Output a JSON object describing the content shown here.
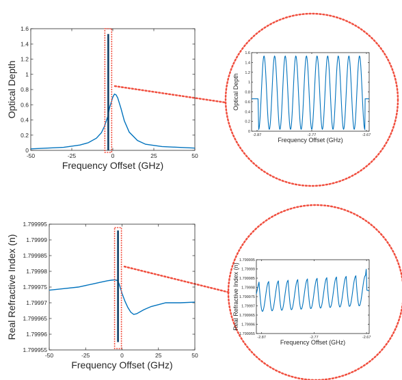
{
  "chart_data": [
    {
      "type": "line",
      "xlabel": "Frequency Offset (GHz)",
      "ylabel": "Optical Depth",
      "xlim": [
        -50,
        50
      ],
      "ylim": [
        0,
        1.6
      ],
      "xticks": [
        -50,
        -25,
        0,
        25,
        50
      ],
      "xtick_labels": [
        "-50",
        "-25",
        "0",
        "25",
        "50"
      ],
      "yticks": [
        0,
        0.2,
        0.4,
        0.6,
        0.8,
        1,
        1.2,
        1.4,
        1.6
      ],
      "ytick_labels": [
        "0",
        "0.2",
        "0.4",
        "0.6",
        "0.8",
        "1",
        "1.2",
        "1.4",
        "1.6"
      ],
      "series": [
        {
          "x": [
            -50,
            -40,
            -30,
            -20,
            -15,
            -10,
            -7,
            -5,
            -3,
            -2,
            0,
            1,
            2,
            3,
            5,
            7,
            10,
            15,
            20,
            30,
            40,
            50
          ],
          "y": [
            0.02,
            0.03,
            0.04,
            0.07,
            0.1,
            0.16,
            0.23,
            0.32,
            0.45,
            0.56,
            0.7,
            0.74,
            0.73,
            0.69,
            0.55,
            0.39,
            0.24,
            0.13,
            0.08,
            0.05,
            0.04,
            0.03
          ]
        }
      ],
      "band": {
        "x": -2.77,
        "ymin": 0,
        "ymax": 1.53
      },
      "highlight_x": [
        -2.87,
        -2.67
      ]
    },
    {
      "type": "line",
      "xlabel": "Frequency Offset (GHz)",
      "ylabel": "Optical Depth",
      "xlim": [
        -2.88,
        -2.665
      ],
      "ylim": [
        0,
        1.6
      ],
      "xticks": [
        -2.87,
        -2.77,
        -2.67
      ],
      "xtick_labels": [
        "-2.87",
        "-2.77",
        "-2.67"
      ],
      "yticks": [
        0,
        0.2,
        0.4,
        0.6,
        0.8,
        1,
        1.2,
        1.4,
        1.6
      ],
      "ytick_labels": [
        "0",
        "0.2",
        "0.4",
        "0.6",
        "0.8",
        "1",
        "1.2",
        "1.4",
        "1.6"
      ],
      "series": [
        {
          "baseline": 0.66,
          "peak": 1.53,
          "trough": 0.04,
          "peaks": 10,
          "x_start": -2.867,
          "x_end": -2.673
        }
      ]
    },
    {
      "type": "line",
      "xlabel": "Frequency Offset (GHz)",
      "ylabel": "Real Refractive Index (n)",
      "xlim": [
        -50,
        50
      ],
      "ylim": [
        1.799955,
        1.799995
      ],
      "xticks": [
        -50,
        -25,
        0,
        25,
        50
      ],
      "xtick_labels": [
        "-50",
        "-25",
        "0",
        "25",
        "50"
      ],
      "yticks": [
        1.799955,
        1.79996,
        1.799965,
        1.79997,
        1.799975,
        1.79998,
        1.799985,
        1.79999,
        1.799995
      ],
      "ytick_labels": [
        "1.799955",
        "1.79996",
        "1.799965",
        "1.79997",
        "1.799975",
        "1.79998",
        "1.799985",
        "1.79999",
        "1.799995"
      ],
      "series": [
        {
          "x": [
            -50,
            -40,
            -30,
            -20,
            -15,
            -10,
            -7,
            -5,
            -4,
            -3,
            -2,
            -1,
            0,
            2,
            4,
            6,
            8,
            10,
            15,
            20,
            30,
            40,
            50
          ],
          "y": [
            1.799974,
            1.7999745,
            1.799975,
            1.799976,
            1.7999765,
            1.799977,
            1.7999772,
            1.7999773,
            1.7999772,
            1.799977,
            1.799976,
            1.7999745,
            1.799973,
            1.7999705,
            1.7999685,
            1.799967,
            1.7999663,
            1.7999665,
            1.7999678,
            1.7999688,
            1.79997,
            1.79997,
            1.7999702
          ]
        }
      ],
      "band": {
        "x": -2.77,
        "ymin": 1.7999575,
        "ymax": 1.799993
      },
      "highlight_x": [
        -2.87,
        -2.67
      ]
    },
    {
      "type": "line",
      "xlabel": "Frequency Offset (GHz)",
      "ylabel": "Real Refractive Index (n)",
      "xlim": [
        -2.88,
        -2.665
      ],
      "ylim": [
        1.799955,
        1.799995
      ],
      "xticks": [
        -2.87,
        -2.77,
        -2.67
      ],
      "xtick_labels": [
        "-2.87",
        "-2.77",
        "-2.67"
      ],
      "yticks": [
        1.799955,
        1.79996,
        1.799965,
        1.79997,
        1.799975,
        1.79998,
        1.799985,
        1.79999,
        1.799995
      ],
      "ytick_labels": [
        "1.799955",
        "1.79996",
        "1.799965",
        "1.79997",
        "1.799975",
        "1.79998",
        "1.799985",
        "1.79999",
        "1.799995"
      ],
      "series": [
        {
          "start": 1.7999765,
          "lows_from": 1.799967,
          "lows_to": 1.79997,
          "highs_from": 1.799983,
          "highs_to": 1.7999865,
          "cycles": 11,
          "end_peak": 1.79999,
          "end_value": 1.7999785
        }
      ]
    }
  ],
  "colors": {
    "line": "#0072bd",
    "band": "#0e3f66",
    "highlight": "#f04e3e",
    "axis": "#262626"
  }
}
